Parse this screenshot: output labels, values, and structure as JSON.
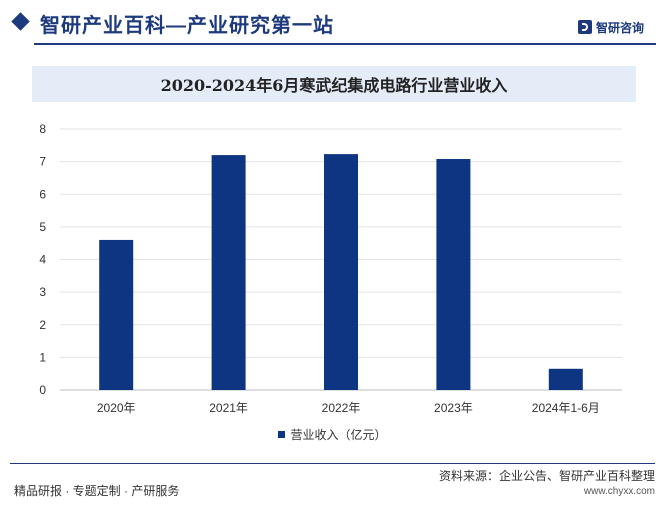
{
  "header": {
    "brand_title": "智研产业百科—产业研究第一站",
    "logo_text": "智研咨询"
  },
  "chart_data": {
    "type": "bar",
    "title": "2020-2024年6月寒武纪集成电路行业营业收入",
    "categories": [
      "2020年",
      "2021年",
      "2022年",
      "2023年",
      "2024年1-6月"
    ],
    "series": [
      {
        "name": "营业收入（亿元）",
        "values": [
          4.6,
          7.2,
          7.23,
          7.08,
          0.65
        ],
        "color": "#0e3582"
      }
    ],
    "ylim": [
      0,
      8
    ],
    "yticks": [
      "0",
      "1",
      "2",
      "3",
      "4",
      "5",
      "6",
      "7",
      "8"
    ],
    "grid": true,
    "legend_position": "bottom"
  },
  "footer": {
    "source": "资料来源：企业公告、智研产业百科整理",
    "left_text": "精品研报 · 专题定制 · 产研服务",
    "url": "www.chyxx.com"
  }
}
